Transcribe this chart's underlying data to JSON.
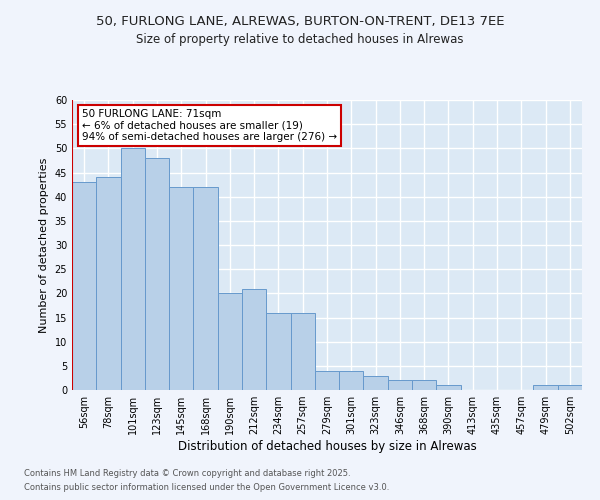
{
  "title_line1": "50, FURLONG LANE, ALREWAS, BURTON-ON-TRENT, DE13 7EE",
  "title_line2": "Size of property relative to detached houses in Alrewas",
  "xlabel": "Distribution of detached houses by size in Alrewas",
  "ylabel": "Number of detached properties",
  "categories": [
    "56sqm",
    "78sqm",
    "101sqm",
    "123sqm",
    "145sqm",
    "168sqm",
    "190sqm",
    "212sqm",
    "234sqm",
    "257sqm",
    "279sqm",
    "301sqm",
    "323sqm",
    "346sqm",
    "368sqm",
    "390sqm",
    "413sqm",
    "435sqm",
    "457sqm",
    "479sqm",
    "502sqm"
  ],
  "values": [
    43,
    44,
    50,
    48,
    42,
    42,
    20,
    21,
    16,
    16,
    4,
    4,
    3,
    2,
    2,
    1,
    0,
    0,
    0,
    1,
    1
  ],
  "bar_color": "#b8d0e8",
  "bar_edge_color": "#6699cc",
  "annotation_text": "50 FURLONG LANE: 71sqm\n← 6% of detached houses are smaller (19)\n94% of semi-detached houses are larger (276) →",
  "annotation_box_color": "#ffffff",
  "annotation_box_edge_color": "#cc0000",
  "property_line_color": "#cc0000",
  "ylim": [
    0,
    60
  ],
  "yticks": [
    0,
    5,
    10,
    15,
    20,
    25,
    30,
    35,
    40,
    45,
    50,
    55,
    60
  ],
  "background_color": "#dce9f5",
  "grid_color": "#ffffff",
  "fig_bg_color": "#f0f4fc",
  "footer_line1": "Contains HM Land Registry data © Crown copyright and database right 2025.",
  "footer_line2": "Contains public sector information licensed under the Open Government Licence v3.0."
}
